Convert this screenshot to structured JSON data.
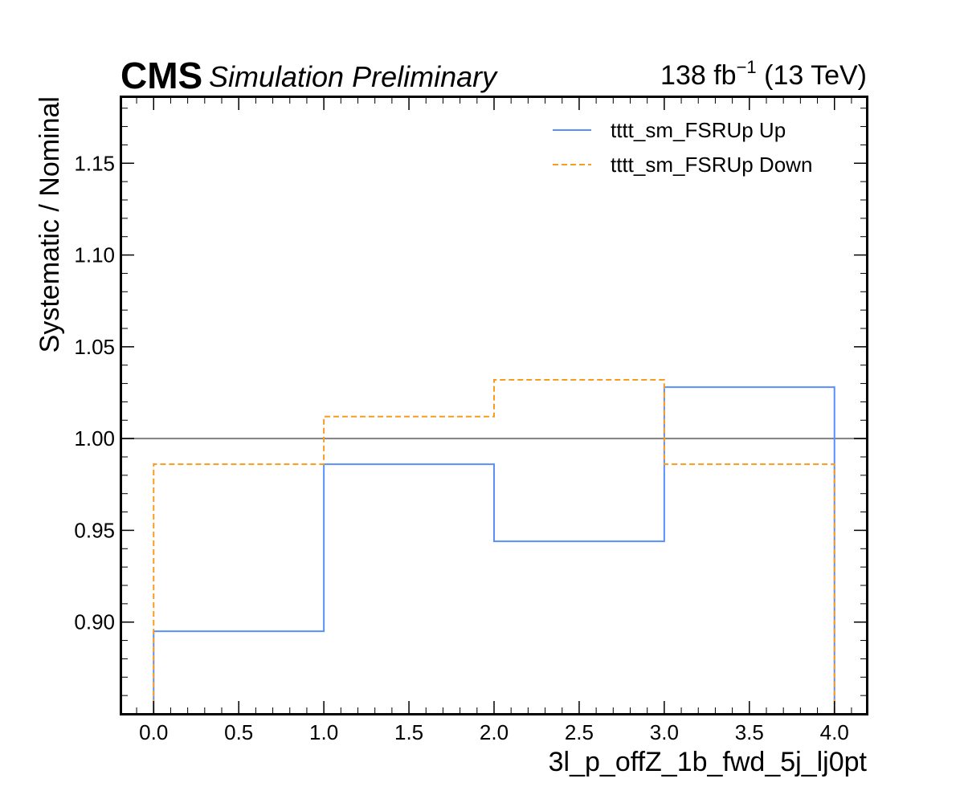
{
  "header": {
    "experiment": "CMS",
    "status": "Simulation Preliminary",
    "lumi_value": "138 fb",
    "lumi_exponent": "−1",
    "lumi_energy": " (13 TeV)"
  },
  "chart_data": {
    "type": "line",
    "step": true,
    "xlabel": "3l_p_offZ_1b_fwd_5j_lj0pt",
    "ylabel": "Systematic / Nominal",
    "xlim": [
      -0.19,
      4.19
    ],
    "ylim": [
      0.85,
      1.186
    ],
    "x_ticks": [
      "0.0",
      "0.5",
      "1.0",
      "1.5",
      "2.0",
      "2.5",
      "3.0",
      "3.5",
      "4.0"
    ],
    "y_ticks": [
      "0.90",
      "0.95",
      "1.00",
      "1.05",
      "1.10",
      "1.15"
    ],
    "bin_edges": [
      0,
      1,
      2,
      3,
      4
    ],
    "reference_line": 1.0,
    "legend_position": "top-right",
    "series": [
      {
        "name": "tttt_sm_FSRUp Up",
        "values": [
          0.895,
          0.986,
          0.944,
          1.028
        ],
        "color": "#5790fc",
        "dash": "solid"
      },
      {
        "name": "tttt_sm_FSRUp Down",
        "values": [
          0.986,
          1.012,
          1.032,
          0.986
        ],
        "color": "#f89c20",
        "dash": "dashed"
      }
    ]
  }
}
